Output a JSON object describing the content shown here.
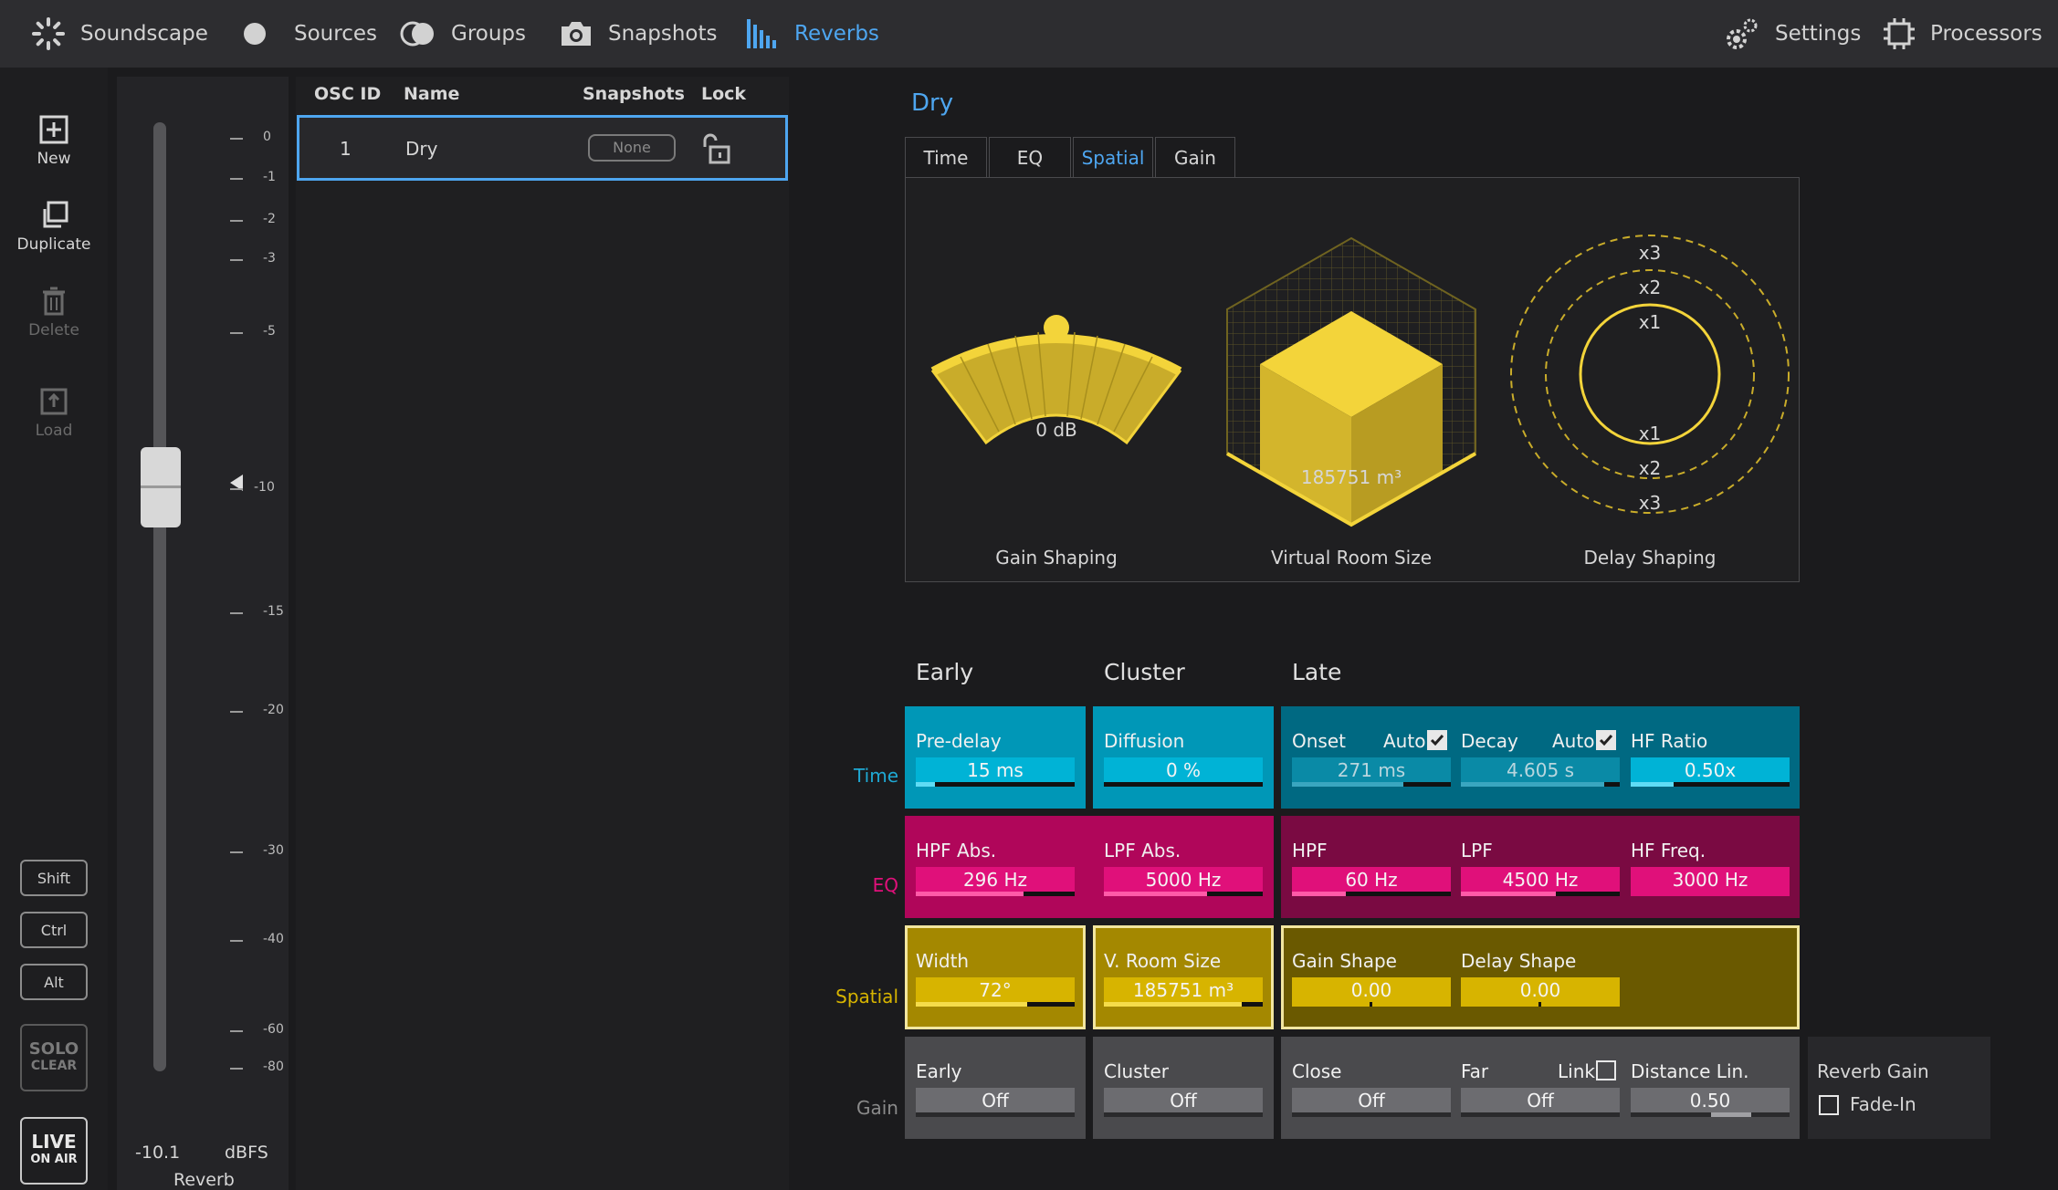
{
  "nav": {
    "items": [
      {
        "label": "Soundscape",
        "icon": "soundscape-icon"
      },
      {
        "label": "Sources",
        "icon": "sources-icon"
      },
      {
        "label": "Groups",
        "icon": "groups-icon"
      },
      {
        "label": "Snapshots",
        "icon": "camera-icon"
      },
      {
        "label": "Reverbs",
        "icon": "reverbs-icon",
        "active": true
      }
    ],
    "right": [
      {
        "label": "Settings",
        "icon": "gears-icon"
      },
      {
        "label": "Processors",
        "icon": "chip-icon"
      }
    ]
  },
  "tools": {
    "new": "New",
    "duplicate": "Duplicate",
    "delete": "Delete",
    "load": "Load",
    "shift": "Shift",
    "ctrl": "Ctrl",
    "alt": "Alt",
    "solo_top": "SOLO",
    "solo_bottom": "CLEAR",
    "live_top": "LIVE",
    "live_bottom": "ON AIR"
  },
  "fader": {
    "ticks": [
      "0",
      "-1",
      "-2",
      "-3",
      "-5",
      "-10",
      "-15",
      "-20",
      "-30",
      "-40",
      "-60",
      "-80"
    ],
    "value": "-10.1",
    "unit": "dBFS",
    "name": "Reverb",
    "level": 0.6
  },
  "table": {
    "headers": {
      "osc_id": "OSC ID",
      "name": "Name",
      "snapshots": "Snapshots",
      "lock": "Lock"
    },
    "rows": [
      {
        "osc_id": "1",
        "name": "Dry",
        "snapshot": "None"
      }
    ]
  },
  "detail": {
    "title": "Dry",
    "tabs": [
      "Time",
      "EQ",
      "Spatial",
      "Gain"
    ],
    "active_tab": "Spatial",
    "gain_shaping": {
      "value": "0 dB",
      "caption": "Gain Shaping"
    },
    "room_size": {
      "value": "185751 m³",
      "caption": "Virtual Room Size"
    },
    "delay_shaping": {
      "labels": [
        "x3",
        "x2",
        "x1",
        "x1",
        "x2",
        "x3"
      ],
      "caption": "Delay Shaping"
    }
  },
  "params": {
    "col_heads": {
      "early": "Early",
      "cluster": "Cluster",
      "late": "Late"
    },
    "row_labels": {
      "time": "Time",
      "eq": "EQ",
      "spatial": "Spatial",
      "gain": "Gain"
    },
    "time": {
      "predelay": {
        "label": "Pre-delay",
        "value": "15 ms",
        "level": 0.12
      },
      "diffusion": {
        "label": "Diffusion",
        "value": "0 %",
        "level": 0.0
      },
      "onset": {
        "label": "Onset",
        "auto": "Auto",
        "value": "271 ms",
        "level": 0.7
      },
      "decay": {
        "label": "Decay",
        "auto": "Auto",
        "value": "4.605 s",
        "level": 0.9
      },
      "hfratio": {
        "label": "HF Ratio",
        "value": "0.50x",
        "level": 0.27
      }
    },
    "eq": {
      "hpfabs": {
        "label": "HPF Abs.",
        "value": "296 Hz",
        "level": 0.68
      },
      "lpfabs": {
        "label": "LPF Abs.",
        "value": "5000 Hz",
        "level": 0.65
      },
      "hpf": {
        "label": "HPF",
        "value": "60 Hz",
        "level": 0.34
      },
      "lpf": {
        "label": "LPF",
        "value": "4500 Hz",
        "level": 0.6
      },
      "hffreq": {
        "label": "HF Freq.",
        "value": "3000 Hz",
        "level": 0.0
      }
    },
    "spatial": {
      "width": {
        "label": "Width",
        "value": "72°",
        "level": 0.7
      },
      "vroom": {
        "label": "V. Room Size",
        "value": "185751 m³",
        "level": 0.87
      },
      "gainshape": {
        "label": "Gain Shape",
        "value": "0.00",
        "level": 0.5
      },
      "delayshape": {
        "label": "Delay Shape",
        "value": "0.00",
        "level": 0.5
      }
    },
    "gain": {
      "early": {
        "label": "Early",
        "value": "Off"
      },
      "cluster": {
        "label": "Cluster",
        "value": "Off"
      },
      "close": {
        "label": "Close",
        "value": "Off"
      },
      "far": {
        "label": "Far",
        "link": "Link",
        "value": "Off"
      },
      "distlin": {
        "label": "Distance Lin.",
        "value": "0.50",
        "level": 0.6
      }
    },
    "reverb_gain": {
      "title": "Reverb Gain",
      "fadein": "Fade-In"
    }
  },
  "colors": {
    "accent": "#4ea6f0",
    "time": "#0097b7",
    "time_field": "#00b3d6",
    "eq": "#b0065a",
    "eq_field": "#e0107a",
    "spatial": "#a48800",
    "spatial_field": "#d7b400",
    "gain": "#4a4a4d",
    "gain_field": "#6c6c70",
    "yellow": "#f3d43a"
  }
}
